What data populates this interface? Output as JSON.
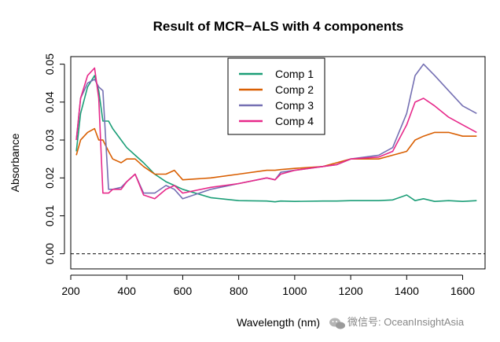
{
  "chart_data": {
    "type": "line",
    "title": "Result of MCR−ALS with 4 components",
    "xlabel": "Wavelength (nm)",
    "ylabel": "Absorbance",
    "xlim": [
      200,
      1680
    ],
    "ylim": [
      -0.004,
      0.052
    ],
    "x_ticks": [
      200,
      400,
      600,
      800,
      1000,
      1200,
      1400,
      1600
    ],
    "y_ticks": [
      0.0,
      0.01,
      0.02,
      0.03,
      0.04,
      0.05
    ],
    "y_tick_labels": [
      "0.00",
      "0.01",
      "0.02",
      "0.03",
      "0.04",
      "0.05"
    ],
    "grid": false,
    "legend_position": "top-center",
    "reference_line": {
      "y": 0,
      "style": "dashed"
    },
    "x": [
      220,
      235,
      260,
      285,
      300,
      315,
      335,
      350,
      380,
      400,
      430,
      460,
      500,
      540,
      570,
      600,
      700,
      800,
      900,
      930,
      950,
      1000,
      1100,
      1150,
      1200,
      1300,
      1350,
      1400,
      1430,
      1460,
      1500,
      1550,
      1600,
      1650
    ],
    "series": [
      {
        "name": "Comp 1",
        "color": "#1b9e77",
        "values": [
          0.027,
          0.037,
          0.044,
          0.047,
          0.043,
          0.035,
          0.035,
          0.033,
          0.03,
          0.028,
          0.026,
          0.024,
          0.021,
          0.019,
          0.018,
          0.017,
          0.0148,
          0.014,
          0.0139,
          0.0137,
          0.0139,
          0.0138,
          0.0139,
          0.0139,
          0.014,
          0.014,
          0.0142,
          0.0155,
          0.014,
          0.0145,
          0.0138,
          0.014,
          0.0138,
          0.014
        ]
      },
      {
        "name": "Comp 2",
        "color": "#d95f02",
        "values": [
          0.026,
          0.03,
          0.032,
          0.033,
          0.03,
          0.03,
          0.027,
          0.025,
          0.024,
          0.025,
          0.025,
          0.023,
          0.021,
          0.021,
          0.022,
          0.0195,
          0.02,
          0.021,
          0.022,
          0.022,
          0.0222,
          0.0225,
          0.023,
          0.024,
          0.025,
          0.025,
          0.026,
          0.027,
          0.03,
          0.031,
          0.032,
          0.032,
          0.031,
          0.031
        ]
      },
      {
        "name": "Comp 3",
        "color": "#7570b3",
        "values": [
          0.03,
          0.041,
          0.045,
          0.046,
          0.044,
          0.043,
          0.017,
          0.017,
          0.0175,
          0.019,
          0.021,
          0.016,
          0.016,
          0.018,
          0.017,
          0.0145,
          0.017,
          0.0185,
          0.02,
          0.0195,
          0.0215,
          0.022,
          0.023,
          0.0235,
          0.025,
          0.026,
          0.028,
          0.037,
          0.047,
          0.05,
          0.047,
          0.043,
          0.039,
          0.037
        ]
      },
      {
        "name": "Comp 4",
        "color": "#e7298a",
        "values": [
          0.03,
          0.041,
          0.047,
          0.049,
          0.041,
          0.016,
          0.016,
          0.017,
          0.017,
          0.019,
          0.021,
          0.0155,
          0.0145,
          0.017,
          0.018,
          0.016,
          0.0175,
          0.0185,
          0.02,
          0.0195,
          0.021,
          0.022,
          0.023,
          0.0235,
          0.025,
          0.0255,
          0.027,
          0.034,
          0.04,
          0.041,
          0.039,
          0.036,
          0.034,
          0.032
        ]
      }
    ]
  },
  "watermark": {
    "text": "微信号: OceanInsightAsia"
  }
}
